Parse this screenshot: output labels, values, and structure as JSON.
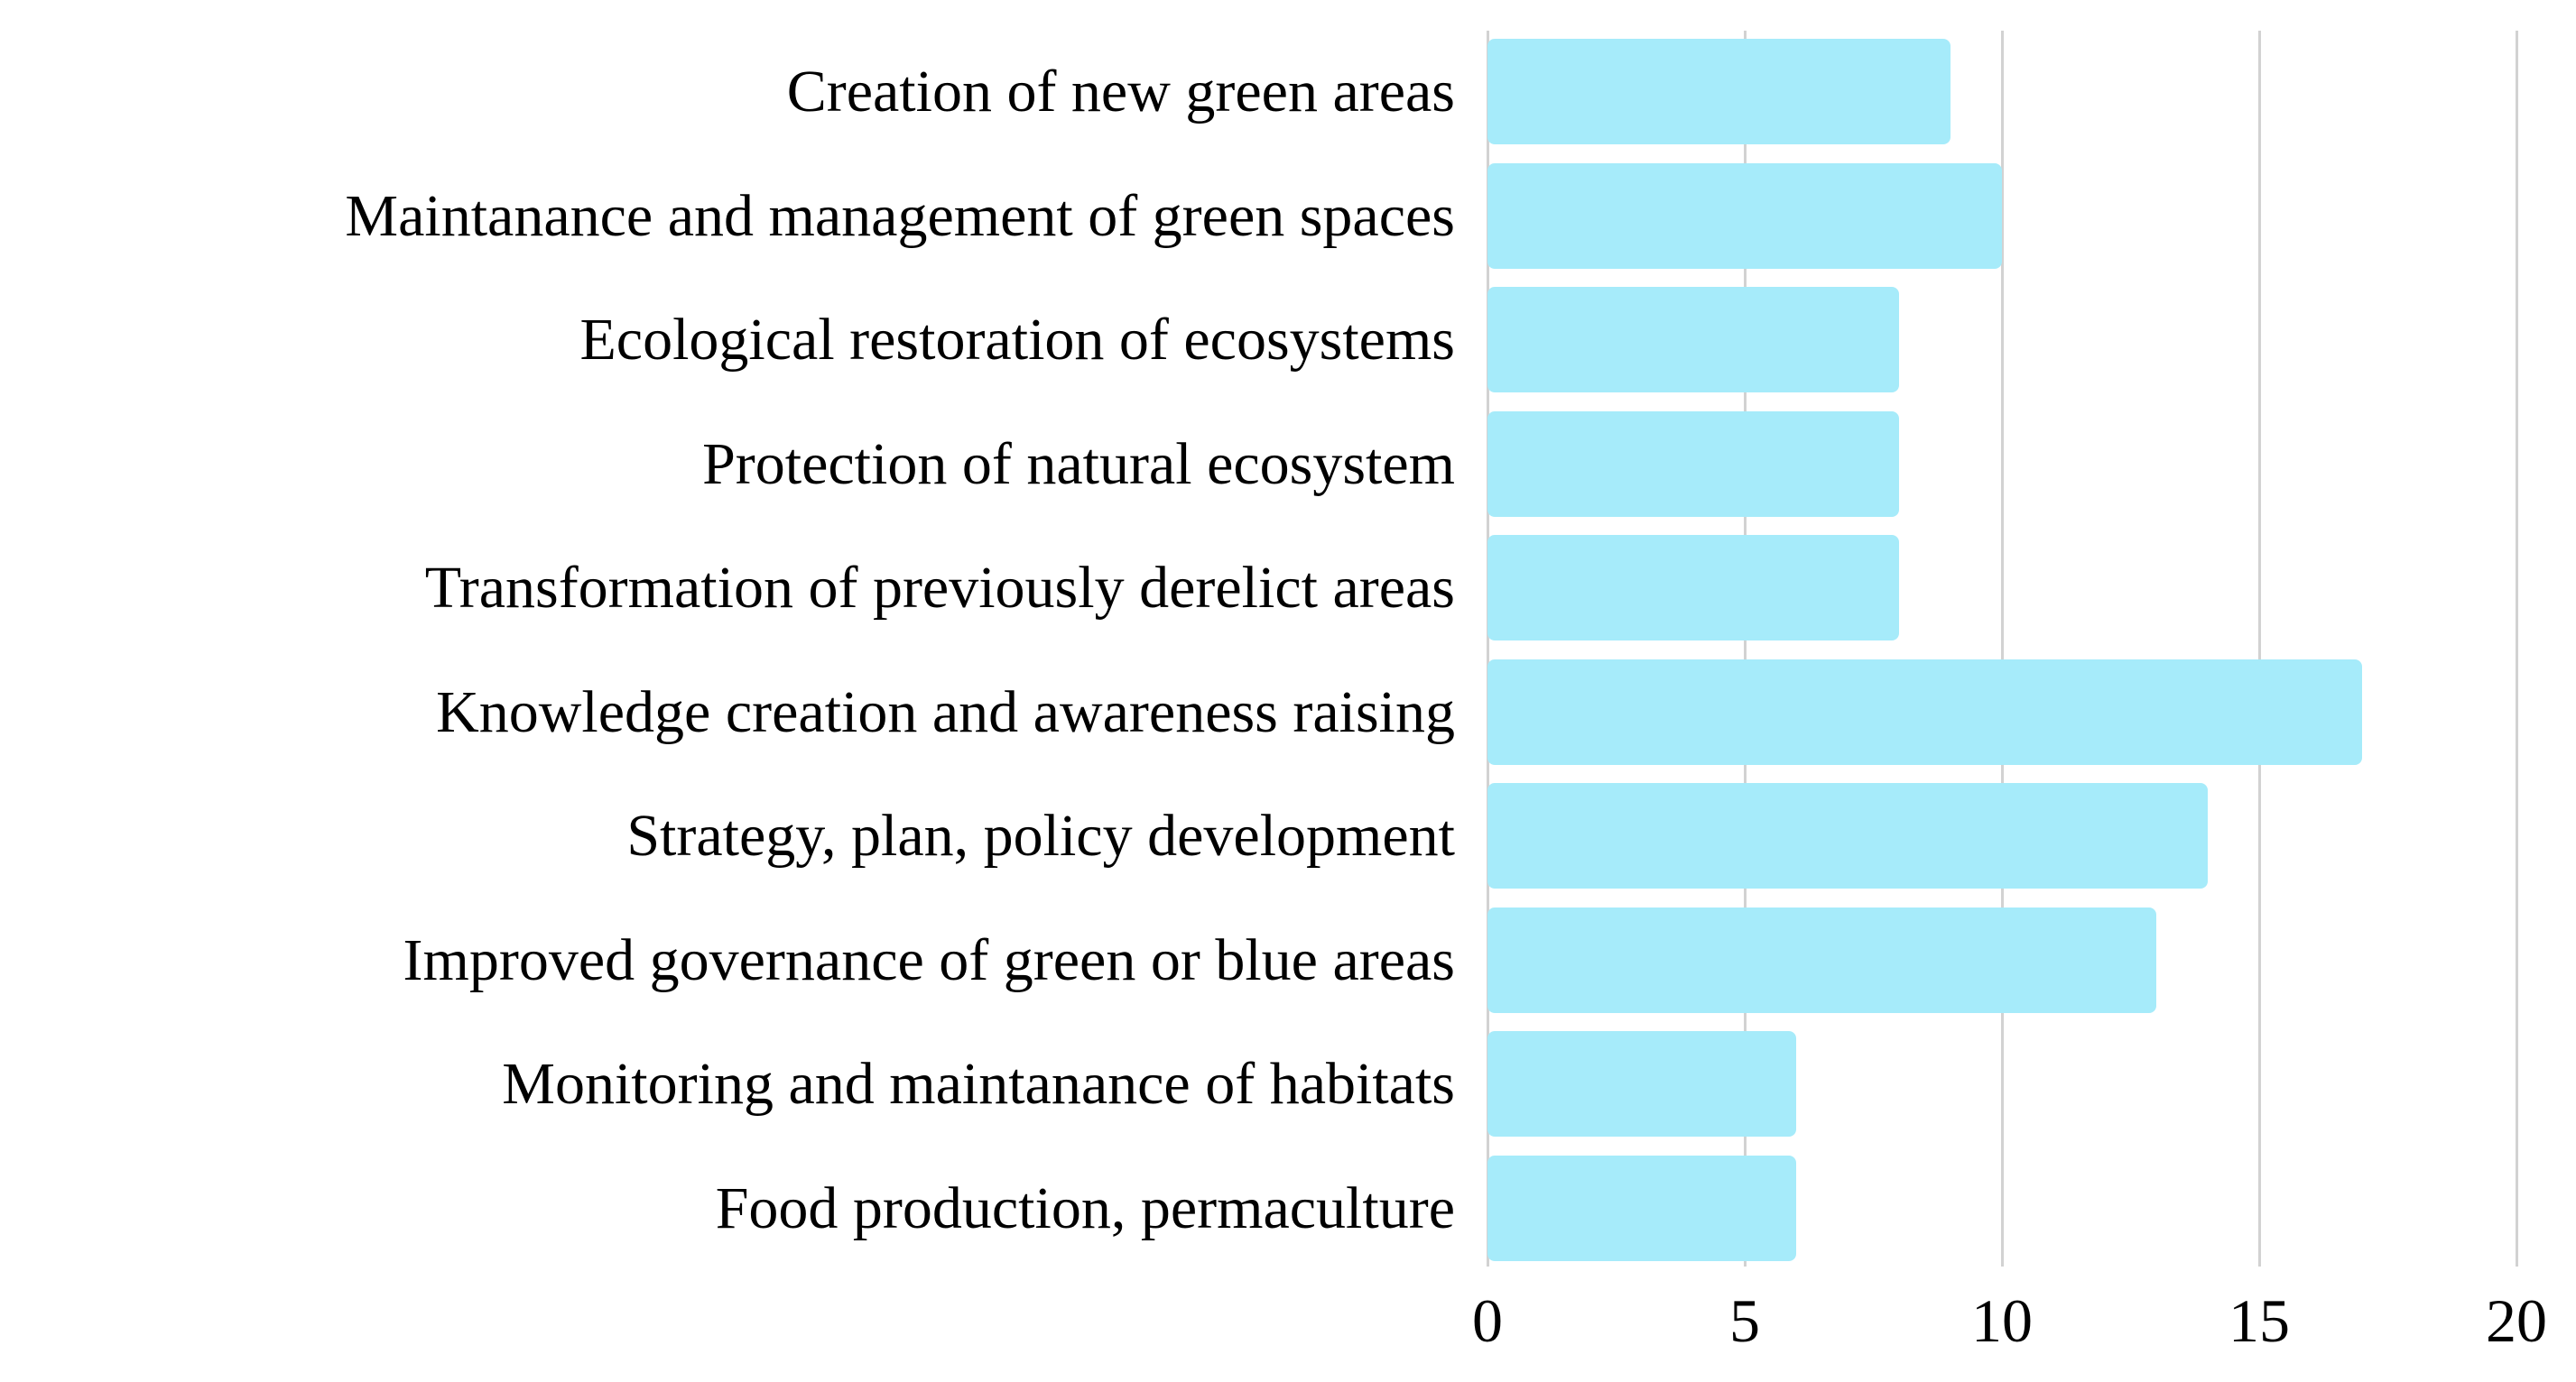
{
  "chart_data": {
    "type": "bar",
    "orientation": "horizontal",
    "categories": [
      "Creation of new green areas",
      "Maintanance and management of green spaces",
      "Ecological restoration of ecosystems",
      "Protection of natural ecosystem",
      "Transformation of previously derelict areas",
      "Knowledge creation and awareness raising",
      "Strategy, plan, policy development",
      "Improved governance of green or blue areas",
      "Monitoring and maintanance of habitats",
      "Food production, permaculture"
    ],
    "values": [
      9,
      10,
      8,
      8,
      8,
      17,
      14,
      13,
      6,
      6
    ],
    "xlabel": "",
    "ylabel": "",
    "xlim": [
      0,
      20
    ],
    "xticks": [
      0,
      5,
      10,
      15,
      20
    ],
    "grid": "vertical",
    "legend": "none",
    "colors": {
      "bar": "#a6ebfa",
      "gridline": "#d2d2d2",
      "text": "#000000",
      "background": "#ffffff"
    }
  }
}
